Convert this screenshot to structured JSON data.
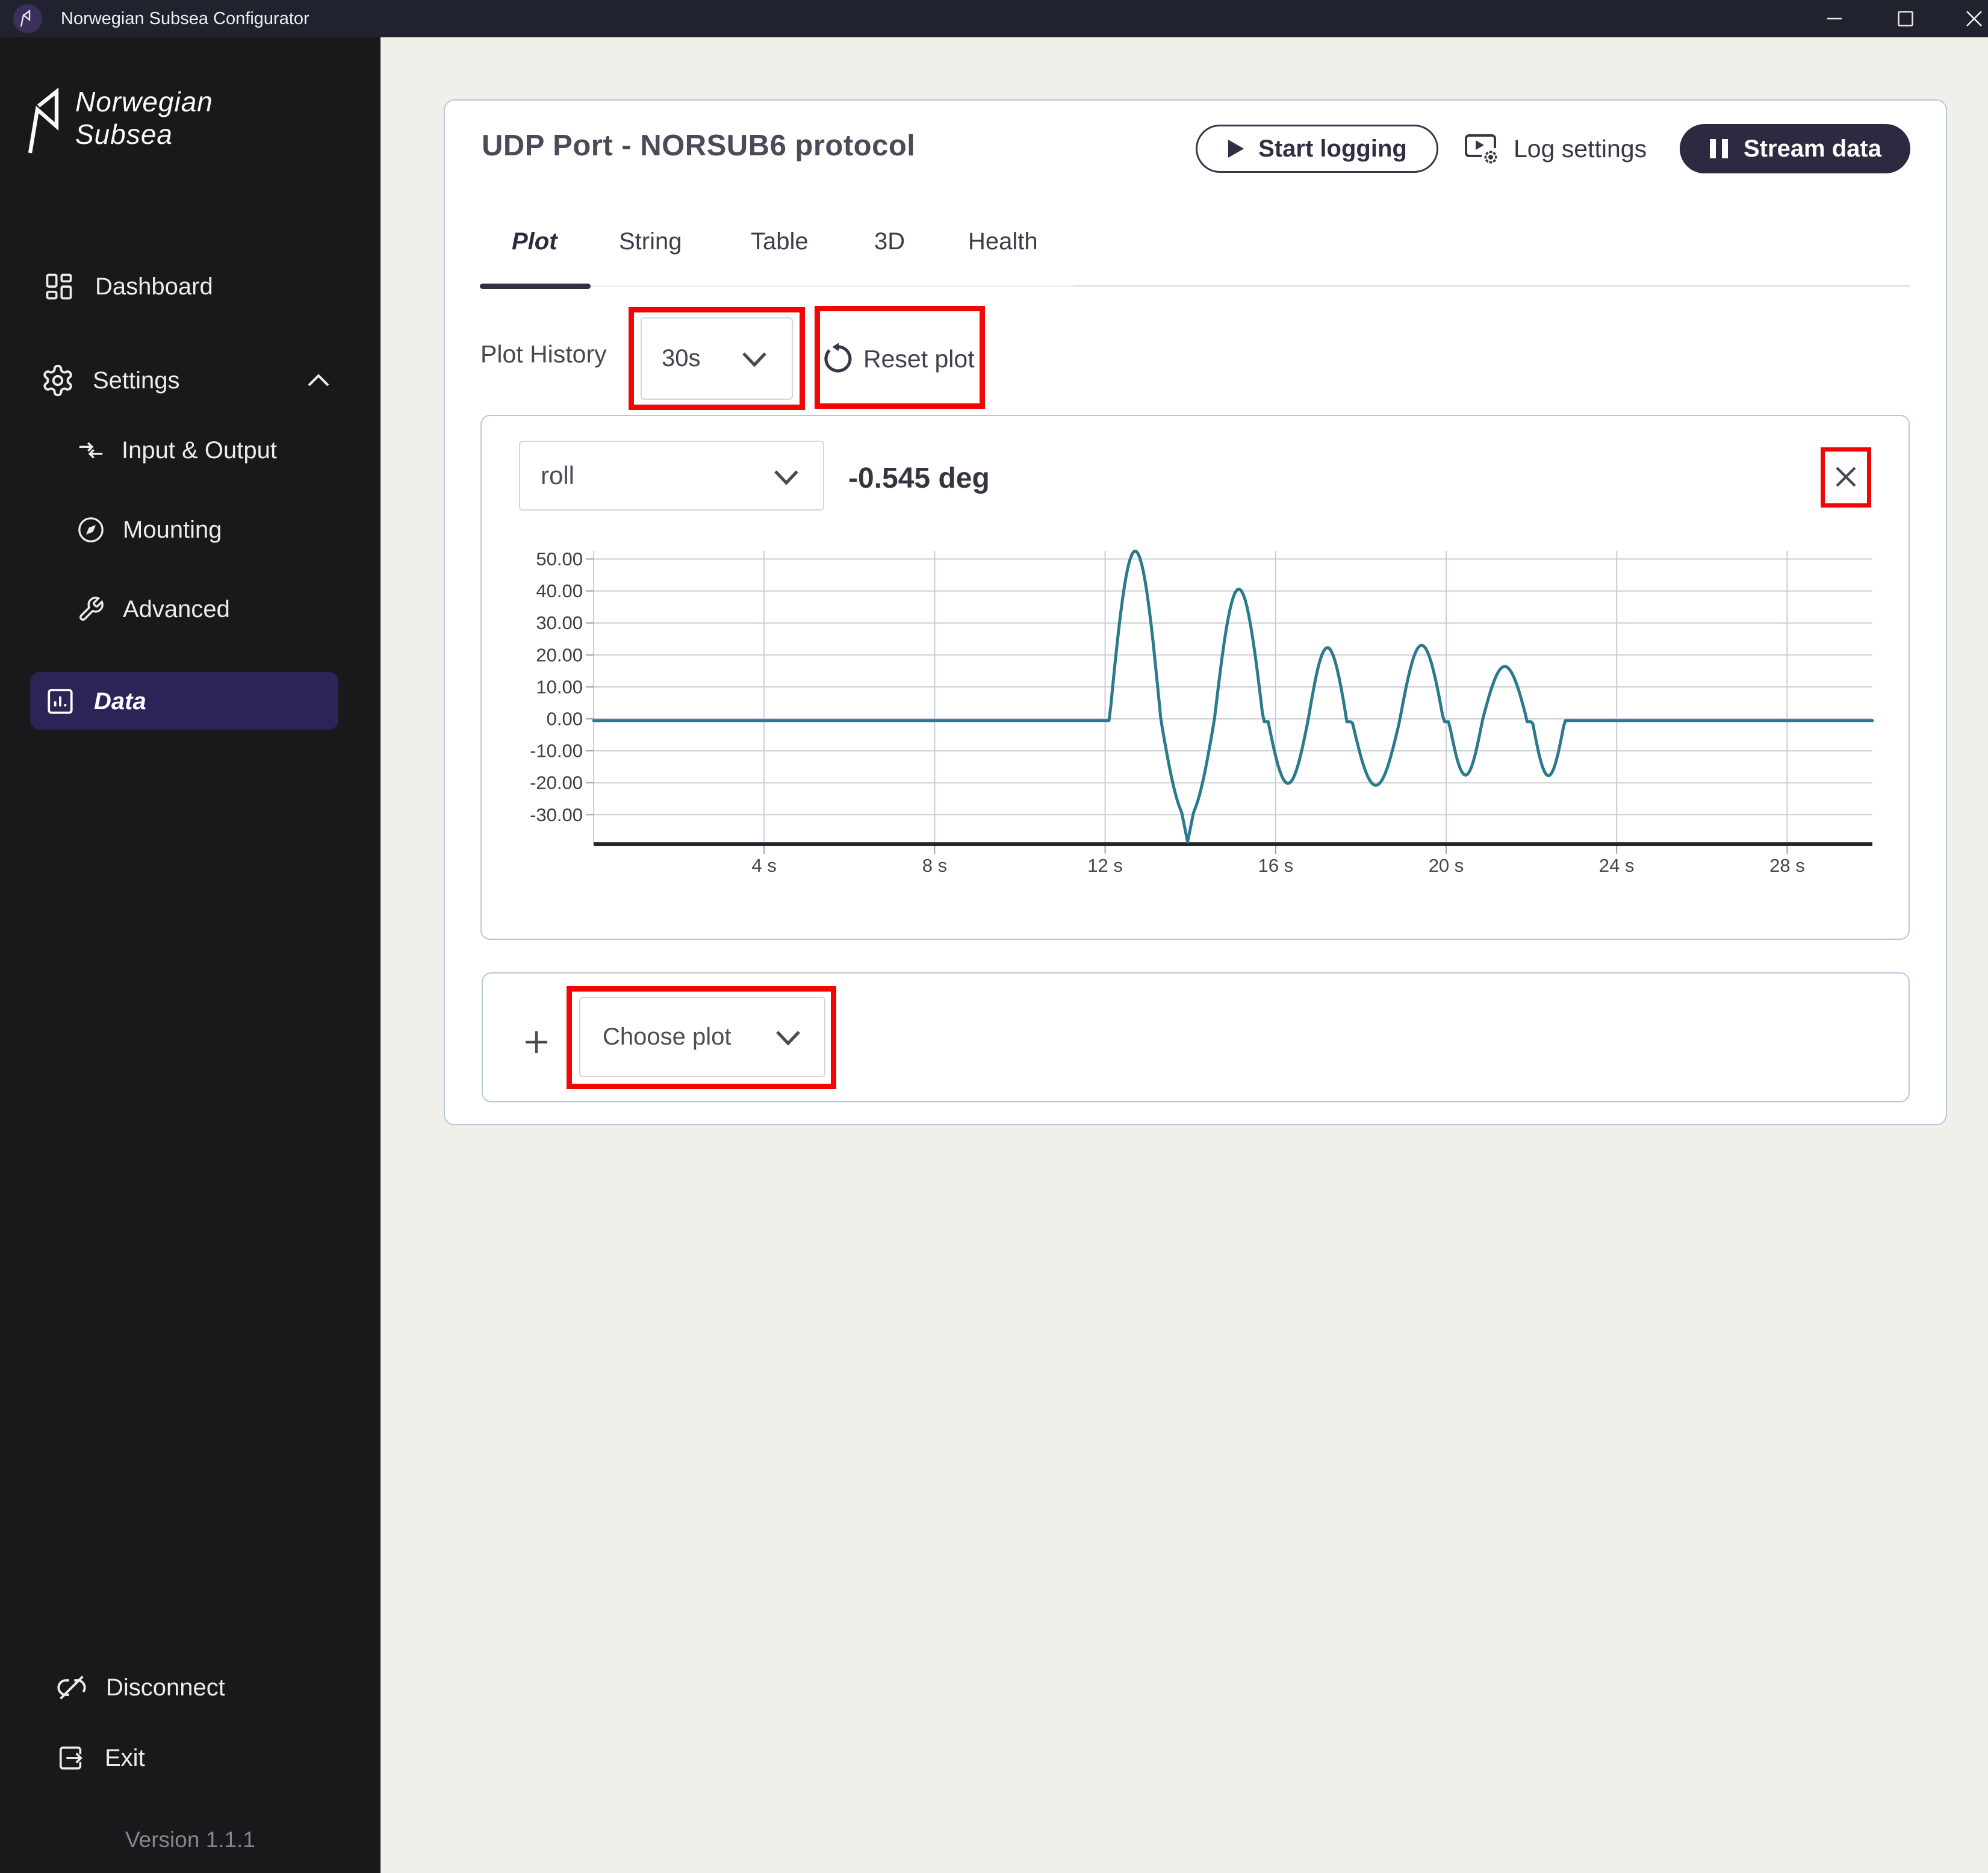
{
  "window": {
    "title": "Norwegian Subsea Configurator"
  },
  "sidebar": {
    "logo": {
      "line1": "Norwegian",
      "line2": "Subsea"
    },
    "items": [
      {
        "label": "Dashboard",
        "icon": "dashboard-icon"
      },
      {
        "label": "Settings",
        "icon": "gear-icon",
        "expanded": true
      },
      {
        "label": "Input & Output",
        "icon": "arrows-icon"
      },
      {
        "label": "Mounting",
        "icon": "compass-icon"
      },
      {
        "label": "Advanced",
        "icon": "wrench-icon",
        "active": false
      },
      {
        "label": "Data",
        "icon": "bar-chart-icon",
        "active": true
      }
    ],
    "footer_items": [
      {
        "label": "Disconnect",
        "icon": "unlink-icon"
      },
      {
        "label": "Exit",
        "icon": "exit-icon"
      }
    ],
    "version": "Version 1.1.1"
  },
  "header": {
    "title": "UDP Port - NORSUB6 protocol",
    "start_logging_label": "Start logging",
    "log_settings_label": "Log settings",
    "stream_data_label": "Stream data"
  },
  "tabs": [
    {
      "label": "Plot",
      "active": true
    },
    {
      "label": "String",
      "active": false
    },
    {
      "label": "Table",
      "active": false
    },
    {
      "label": "3D",
      "active": false
    },
    {
      "label": "Health",
      "active": false
    }
  ],
  "plot_controls": {
    "history_label": "Plot History",
    "history_value": "30s",
    "reset_label": "Reset plot"
  },
  "plot_card": {
    "channel": "roll",
    "current_value": "-0.545 deg"
  },
  "add_plot": {
    "choose_label": "Choose plot"
  },
  "colors": {
    "titlebar": "#20222e",
    "sidebar": "#19181b",
    "sidebar_active": "#2d2356",
    "accent_dark": "#2e2940",
    "card_border": "#b6c7d8",
    "line": "#2a7a8c",
    "annotation": "#f20505",
    "background": "#f1efe9"
  },
  "chart_data": {
    "type": "line",
    "series_name": "roll",
    "unit": "deg",
    "current_value": -0.545,
    "xlim": [
      0,
      30
    ],
    "ylim": [
      -39.2,
      52.5
    ],
    "grid": true,
    "x_tick_values": [
      4,
      8,
      12,
      16,
      20,
      24,
      28
    ],
    "x_tick_labels": [
      "4 s",
      "8 s",
      "12 s",
      "16 s",
      "20 s",
      "24 s",
      "28 s"
    ],
    "y_tick_values": [
      50,
      40,
      30,
      20,
      10,
      0,
      -10,
      -20,
      -30
    ],
    "y_tick_labels": [
      "50.00",
      "40.00",
      "30.00",
      "20.00",
      "10.00",
      "0.00",
      "-10.00",
      "-20.00",
      "-30.00"
    ],
    "points": [
      [
        0.0,
        -0.55
      ],
      [
        11.95,
        -0.55
      ],
      [
        12.0,
        -0.55
      ],
      [
        12.045,
        -0.55
      ],
      [
        12.09,
        -0.55
      ],
      [
        12.135,
        4.27
      ],
      [
        12.18,
        10.39
      ],
      [
        12.225,
        16.37
      ],
      [
        12.27,
        22.12
      ],
      [
        12.315,
        27.55
      ],
      [
        12.36,
        32.6
      ],
      [
        12.405,
        37.21
      ],
      [
        12.45,
        41.29
      ],
      [
        12.495,
        44.81
      ],
      [
        12.54,
        47.71
      ],
      [
        12.585,
        49.95
      ],
      [
        12.63,
        51.5
      ],
      [
        12.675,
        52.34
      ],
      [
        12.72,
        52.46
      ],
      [
        12.765,
        51.86
      ],
      [
        12.81,
        50.54
      ],
      [
        12.855,
        48.53
      ],
      [
        12.9,
        45.85
      ],
      [
        12.945,
        42.53
      ],
      [
        12.99,
        38.63
      ],
      [
        13.035,
        34.19
      ],
      [
        13.08,
        29.28
      ],
      [
        13.125,
        23.97
      ],
      [
        13.17,
        18.31
      ],
      [
        13.215,
        12.41
      ],
      [
        13.26,
        6.32
      ],
      [
        13.305,
        0.14
      ],
      [
        13.35,
        -3.6
      ],
      [
        13.395,
        -7.0
      ],
      [
        13.44,
        -10.32
      ],
      [
        13.485,
        -13.51
      ],
      [
        13.53,
        -16.54
      ],
      [
        13.575,
        -19.36
      ],
      [
        13.62,
        -21.94
      ],
      [
        13.665,
        -24.25
      ],
      [
        13.71,
        -26.26
      ],
      [
        13.755,
        -27.94
      ],
      [
        13.8,
        -29.47
      ],
      [
        13.845,
        -32.48
      ],
      [
        13.89,
        -35.49
      ],
      [
        13.935,
        -38.5
      ],
      [
        13.98,
        -35.49
      ],
      [
        14.025,
        -32.48
      ],
      [
        14.07,
        -29.47
      ],
      [
        14.115,
        -27.94
      ],
      [
        14.16,
        -26.26
      ],
      [
        14.205,
        -24.25
      ],
      [
        14.25,
        -21.94
      ],
      [
        14.295,
        -19.36
      ],
      [
        14.34,
        -16.54
      ],
      [
        14.385,
        -13.51
      ],
      [
        14.43,
        -10.32
      ],
      [
        14.475,
        -7.0
      ],
      [
        14.52,
        -3.6
      ],
      [
        14.565,
        0.02
      ],
      [
        14.61,
        5.06
      ],
      [
        14.655,
        10.01
      ],
      [
        14.7,
        14.81
      ],
      [
        14.745,
        19.38
      ],
      [
        14.79,
        23.64
      ],
      [
        14.835,
        27.54
      ],
      [
        14.88,
        31.01
      ],
      [
        14.925,
        34.01
      ],
      [
        14.97,
        36.49
      ],
      [
        15.015,
        38.41
      ],
      [
        15.06,
        39.74
      ],
      [
        15.105,
        40.46
      ],
      [
        15.15,
        40.57
      ],
      [
        15.195,
        40.05
      ],
      [
        15.24,
        38.92
      ],
      [
        15.285,
        37.19
      ],
      [
        15.33,
        34.9
      ],
      [
        15.375,
        32.07
      ],
      [
        15.42,
        28.75
      ],
      [
        15.465,
        24.98
      ],
      [
        15.51,
        20.83
      ],
      [
        15.555,
        16.36
      ],
      [
        15.6,
        11.63
      ],
      [
        15.645,
        6.72
      ],
      [
        15.69,
        1.7
      ],
      [
        15.735,
        -0.9
      ],
      [
        15.78,
        -0.9
      ],
      [
        15.825,
        -0.87
      ],
      [
        15.87,
        -3.81
      ],
      [
        15.915,
        -6.68
      ],
      [
        15.96,
        -9.41
      ],
      [
        16.005,
        -11.94
      ],
      [
        16.05,
        -14.21
      ],
      [
        16.095,
        -16.17
      ],
      [
        16.14,
        -17.78
      ],
      [
        16.185,
        -19.0
      ],
      [
        16.23,
        -19.81
      ],
      [
        16.275,
        -20.18
      ],
      [
        16.32,
        -20.1
      ],
      [
        16.365,
        -19.59
      ],
      [
        16.41,
        -18.64
      ],
      [
        16.455,
        -17.29
      ],
      [
        16.5,
        -15.55
      ],
      [
        16.545,
        -13.48
      ],
      [
        16.59,
        -11.12
      ],
      [
        16.635,
        -8.52
      ],
      [
        16.68,
        -5.74
      ],
      [
        16.725,
        -2.84
      ],
      [
        16.77,
        0.24
      ],
      [
        16.815,
        3.77
      ],
      [
        16.86,
        7.19
      ],
      [
        16.905,
        10.42
      ],
      [
        16.95,
        13.39
      ],
      [
        16.995,
        16.02
      ],
      [
        17.04,
        18.26
      ],
      [
        17.085,
        20.04
      ],
      [
        17.13,
        21.32
      ],
      [
        17.175,
        22.08
      ],
      [
        17.22,
        22.3
      ],
      [
        17.265,
        21.96
      ],
      [
        17.31,
        21.08
      ],
      [
        17.355,
        19.68
      ],
      [
        17.4,
        17.8
      ],
      [
        17.445,
        15.47
      ],
      [
        17.49,
        12.76
      ],
      [
        17.535,
        9.72
      ],
      [
        17.58,
        6.44
      ],
      [
        17.625,
        2.99
      ],
      [
        17.67,
        -0.9
      ],
      [
        17.715,
        -0.9
      ],
      [
        17.76,
        -0.9
      ],
      [
        17.805,
        -1.4
      ],
      [
        17.85,
        -3.94
      ],
      [
        17.895,
        -6.42
      ],
      [
        17.94,
        -8.82
      ],
      [
        17.985,
        -11.08
      ],
      [
        18.03,
        -13.17
      ],
      [
        18.075,
        -15.07
      ],
      [
        18.12,
        -16.73
      ],
      [
        18.165,
        -18.13
      ],
      [
        18.21,
        -19.26
      ],
      [
        18.255,
        -20.09
      ],
      [
        18.3,
        -20.6
      ],
      [
        18.345,
        -20.8
      ],
      [
        18.39,
        -20.67
      ],
      [
        18.435,
        -20.23
      ],
      [
        18.48,
        -19.47
      ],
      [
        18.525,
        -18.41
      ],
      [
        18.57,
        -17.06
      ],
      [
        18.615,
        -15.46
      ],
      [
        18.66,
        -13.61
      ],
      [
        18.705,
        -11.56
      ],
      [
        18.75,
        -9.33
      ],
      [
        18.795,
        -6.97
      ],
      [
        18.84,
        -4.5
      ],
      [
        18.885,
        -1.96
      ],
      [
        18.93,
        0.89
      ],
      [
        18.975,
        4.09
      ],
      [
        19.02,
        7.21
      ],
      [
        19.065,
        10.18
      ],
      [
        19.11,
        12.94
      ],
      [
        19.155,
        15.46
      ],
      [
        19.2,
        17.67
      ],
      [
        19.245,
        19.54
      ],
      [
        19.29,
        21.03
      ],
      [
        19.335,
        22.12
      ],
      [
        19.38,
        22.78
      ],
      [
        19.425,
        23.0
      ],
      [
        19.47,
        22.78
      ],
      [
        19.515,
        22.12
      ],
      [
        19.56,
        21.03
      ],
      [
        19.605,
        19.54
      ],
      [
        19.65,
        17.67
      ],
      [
        19.695,
        15.46
      ],
      [
        19.74,
        12.94
      ],
      [
        19.785,
        10.18
      ],
      [
        19.83,
        7.21
      ],
      [
        19.875,
        4.09
      ],
      [
        19.92,
        0.89
      ],
      [
        19.965,
        -0.9
      ],
      [
        20.01,
        -0.9
      ],
      [
        20.055,
        -0.9
      ],
      [
        20.1,
        -3.25
      ],
      [
        20.145,
        -6.2
      ],
      [
        20.19,
        -8.97
      ],
      [
        20.235,
        -11.48
      ],
      [
        20.28,
        -13.63
      ],
      [
        20.325,
        -15.37
      ],
      [
        20.37,
        -16.63
      ],
      [
        20.415,
        -17.38
      ],
      [
        20.46,
        -17.6
      ],
      [
        20.505,
        -17.26
      ],
      [
        20.55,
        -16.4
      ],
      [
        20.595,
        -15.02
      ],
      [
        20.64,
        -13.19
      ],
      [
        20.685,
        -10.95
      ],
      [
        20.73,
        -8.38
      ],
      [
        20.775,
        -5.56
      ],
      [
        20.82,
        -2.57
      ],
      [
        20.865,
        0.22
      ],
      [
        20.91,
        2.48
      ],
      [
        20.955,
        4.69
      ],
      [
        21.0,
        6.81
      ],
      [
        21.045,
        8.79
      ],
      [
        21.09,
        10.6
      ],
      [
        21.135,
        12.22
      ],
      [
        21.18,
        13.6
      ],
      [
        21.225,
        14.72
      ],
      [
        21.27,
        15.57
      ],
      [
        21.315,
        16.13
      ],
      [
        21.36,
        16.38
      ],
      [
        21.405,
        16.33
      ],
      [
        21.45,
        15.98
      ],
      [
        21.495,
        15.32
      ],
      [
        21.54,
        14.38
      ],
      [
        21.585,
        13.16
      ],
      [
        21.63,
        11.7
      ],
      [
        21.675,
        10.02
      ],
      [
        21.72,
        8.15
      ],
      [
        21.765,
        6.11
      ],
      [
        21.81,
        3.96
      ],
      [
        21.855,
        1.73
      ],
      [
        21.9,
        -0.9
      ],
      [
        21.945,
        -0.9
      ],
      [
        21.99,
        -0.9
      ],
      [
        22.035,
        -1.61
      ],
      [
        22.08,
        -4.78
      ],
      [
        22.125,
        -7.8
      ],
      [
        22.17,
        -10.57
      ],
      [
        22.215,
        -13.0
      ],
      [
        22.26,
        -14.99
      ],
      [
        22.305,
        -16.49
      ],
      [
        22.35,
        -17.43
      ],
      [
        22.395,
        -17.8
      ],
      [
        22.44,
        -17.56
      ],
      [
        22.485,
        -16.75
      ],
      [
        22.53,
        -15.37
      ],
      [
        22.575,
        -13.48
      ],
      [
        22.62,
        -11.14
      ],
      [
        22.665,
        -8.44
      ],
      [
        22.71,
        -5.47
      ],
      [
        22.755,
        -2.32
      ],
      [
        22.8,
        -0.55
      ],
      [
        30.0,
        -0.55
      ]
    ]
  }
}
